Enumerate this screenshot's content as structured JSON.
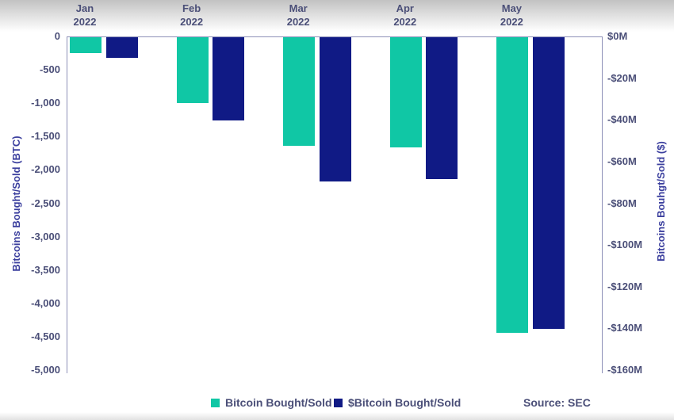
{
  "chart_data": {
    "type": "bar",
    "title": "",
    "categories": [
      "Jan 2022",
      "Feb 2022",
      "Mar 2022",
      "Apr 2022",
      "May 2022"
    ],
    "series": [
      {
        "name": "Bitcoin Bought/Sold",
        "axis": "left",
        "unit": "BTC",
        "color": "#10c7a5",
        "values": [
          -240,
          -990,
          -1630,
          -1650,
          -4430
        ]
      },
      {
        "name": "$Bitcoin Bought/Sold",
        "axis": "right",
        "unit": "$M",
        "color": "#101a85",
        "values": [
          -10,
          -40,
          -69,
          -68,
          -140
        ]
      }
    ],
    "left_axis": {
      "label": "Bitcoins Bought/Sold (BTC)",
      "min": -5000,
      "max": 0,
      "tick_step": 500,
      "ticks": [
        "0",
        "-500",
        "-1,000",
        "-1,500",
        "-2,000",
        "-2,500",
        "-3,000",
        "-3,500",
        "-4,000",
        "-4,500",
        "-5,000"
      ]
    },
    "right_axis": {
      "label": "Bitcoins Bouhgt/Sold ($)",
      "min": -160,
      "max": 0,
      "tick_step": 20,
      "ticks": [
        "$0M",
        "-$20M",
        "-$40M",
        "-$60M",
        "-$80M",
        "-$100M",
        "-$120M",
        "-$140M",
        "-$160M"
      ]
    },
    "legend": [
      {
        "label": "Bitcoin Bought/Sold",
        "color": "#10c7a5"
      },
      {
        "label": "$Bitcoin Bought/Sold",
        "color": "#101a85"
      }
    ],
    "legend_position": "bottom",
    "grid": false,
    "source": "Source: SEC"
  },
  "colors": {
    "teal": "#10c7a5",
    "navy": "#101a85",
    "text": "#4b4f78",
    "axis_line": "#8d90b8"
  }
}
